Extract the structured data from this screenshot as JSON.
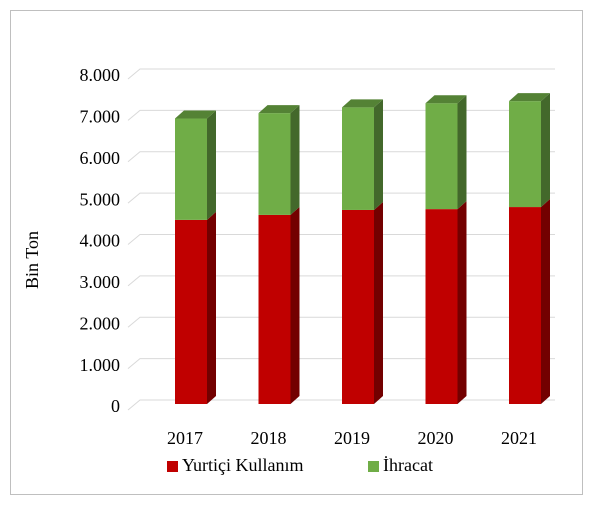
{
  "chart_data": {
    "type": "bar3d_stacked",
    "ylabel": "Bin Ton",
    "categories": [
      "2017",
      "2018",
      "2019",
      "2020",
      "2021"
    ],
    "series": [
      {
        "name": "Yurtiçi Kullanım",
        "color": "#c00000",
        "values": [
          4450,
          4570,
          4690,
          4710,
          4760
        ]
      },
      {
        "name": "İhracat",
        "color": "#70ad47",
        "values": [
          2450,
          2460,
          2480,
          2560,
          2560
        ]
      }
    ],
    "ylim": [
      0,
      8000
    ],
    "yticks": [
      0,
      {
        "value": 1000,
        "label": "1.000"
      },
      {
        "value": 2000,
        "label": "2.000"
      },
      {
        "value": 3000,
        "label": "3.000"
      },
      {
        "value": 4000,
        "label": "4.000"
      },
      {
        "value": 5000,
        "label": "5.000"
      },
      {
        "value": 6000,
        "label": "6.000"
      },
      {
        "value": 7000,
        "label": "7.000"
      },
      {
        "value": 8000,
        "label": "8.000"
      }
    ],
    "grid": true
  }
}
